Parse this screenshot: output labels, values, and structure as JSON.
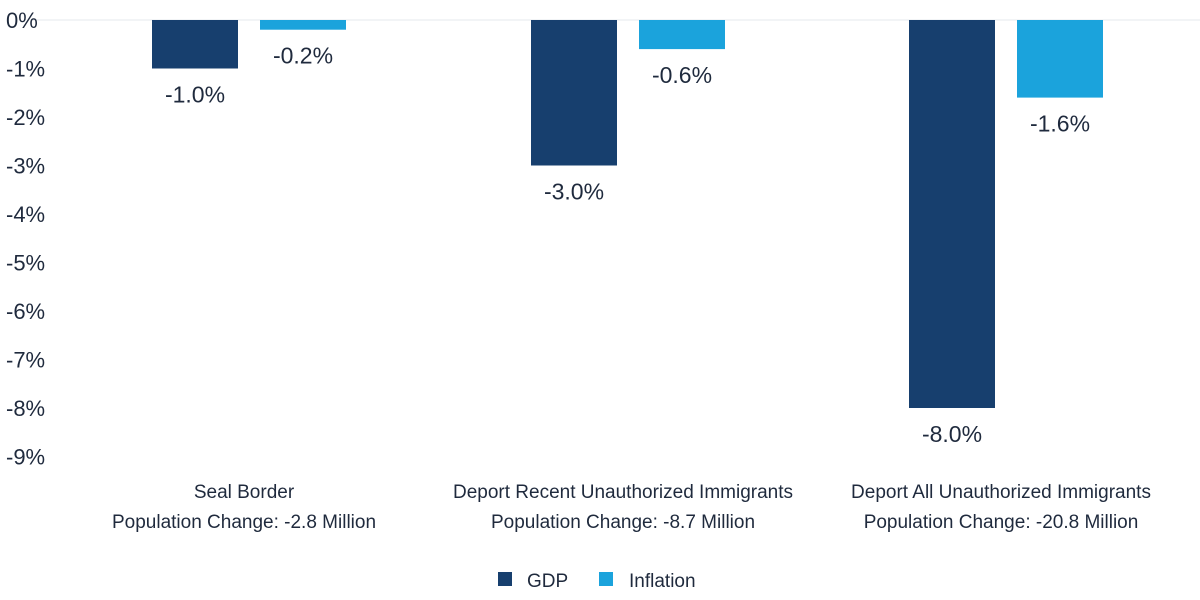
{
  "chart_data": {
    "type": "bar",
    "categories": [
      {
        "line1": "Seal Border",
        "line2": "Population Change: -2.8 Million"
      },
      {
        "line1": "Deport Recent Unauthorized Immigrants",
        "line2": "Population Change: -8.7 Million"
      },
      {
        "line1": "Deport All Unauthorized Immigrants",
        "line2": "Population Change: -20.8 Million"
      }
    ],
    "series": [
      {
        "name": "GDP",
        "color": "#173f6e",
        "values": [
          -1.0,
          -3.0,
          -8.0
        ],
        "labels": [
          "-1.0%",
          "-3.0%",
          "-8.0%"
        ]
      },
      {
        "name": "Inflation",
        "color": "#1ba3dc",
        "values": [
          -0.2,
          -0.6,
          -1.6
        ],
        "labels": [
          "-0.2%",
          "-0.6%",
          "-1.6%"
        ]
      }
    ],
    "yticks": [
      0,
      -1,
      -2,
      -3,
      -4,
      -5,
      -6,
      -7,
      -8,
      -9
    ],
    "ytick_labels": [
      "0%",
      "-1%",
      "-2%",
      "-3%",
      "-4%",
      "-5%",
      "-6%",
      "-7%",
      "-8%",
      "-9%"
    ],
    "ylim": [
      -9,
      0
    ],
    "title": "",
    "xlabel": "",
    "ylabel": "",
    "legend_position": "bottom-center"
  }
}
